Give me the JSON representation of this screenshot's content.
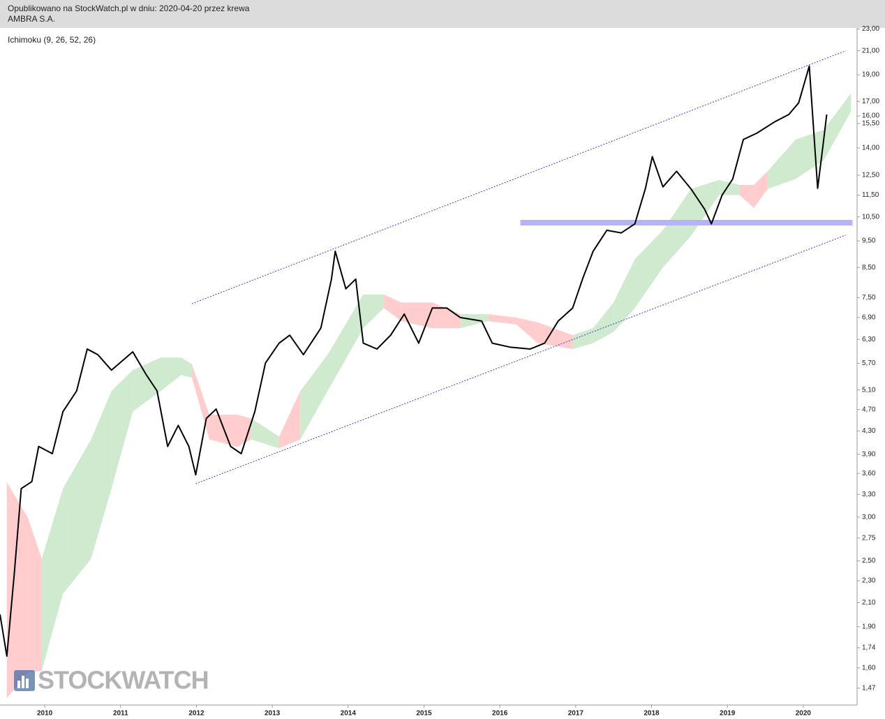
{
  "header": {
    "line1": "Opublikowano na StockWatch.pl w dniu: 2020-04-20 przez krewa",
    "line2": "AMBRA S.A."
  },
  "watermark": "STOCKWATCH",
  "chart_data": {
    "type": "line",
    "indicator_label": "Ichimoku (9, 26, 52, 26)",
    "log_scale": true,
    "color": "#000000",
    "xlim": [
      2009.41,
      2020.71
    ],
    "ylim": [
      1.37,
      23.1
    ],
    "xticks": [
      2010,
      2011,
      2012,
      2013,
      2014,
      2015,
      2016,
      2017,
      2018,
      2019,
      2020
    ],
    "yticks": [
      {
        "value": 23,
        "label": "23,00"
      },
      {
        "value": 21,
        "label": "21,00"
      },
      {
        "value": 19,
        "label": "19,00"
      },
      {
        "value": 17,
        "label": "17,00"
      },
      {
        "value": 16,
        "label": "16,00"
      },
      {
        "value": 15.5,
        "label": "15,50"
      },
      {
        "value": 14,
        "label": "14,00"
      },
      {
        "value": 12.5,
        "label": "12,50"
      },
      {
        "value": 11.5,
        "label": "11,50"
      },
      {
        "value": 10.5,
        "label": "10,50"
      },
      {
        "value": 9.5,
        "label": "9,50"
      },
      {
        "value": 8.5,
        "label": "8,50"
      },
      {
        "value": 7.5,
        "label": "7,50"
      },
      {
        "value": 6.9,
        "label": "6,90"
      },
      {
        "value": 6.3,
        "label": "6,30"
      },
      {
        "value": 5.7,
        "label": "5,70"
      },
      {
        "value": 5.1,
        "label": "5,10"
      },
      {
        "value": 4.7,
        "label": "4,70"
      },
      {
        "value": 4.3,
        "label": "4,30"
      },
      {
        "value": 3.9,
        "label": "3,90"
      },
      {
        "value": 3.6,
        "label": "3,60"
      },
      {
        "value": 3.3,
        "label": "3,30"
      },
      {
        "value": 3,
        "label": "3,00"
      },
      {
        "value": 2.75,
        "label": "2,75"
      },
      {
        "value": 2.5,
        "label": "2,50"
      },
      {
        "value": 2.3,
        "label": "2,30"
      },
      {
        "value": 2.1,
        "label": "2,10"
      },
      {
        "value": 1.9,
        "label": "1,90"
      },
      {
        "value": 1.74,
        "label": "1,74"
      },
      {
        "value": 1.6,
        "label": "1,60"
      },
      {
        "value": 1.47,
        "label": "1,47"
      }
    ],
    "x": [
      2009.41,
      2009.5,
      2009.6,
      2009.69,
      2009.83,
      2009.92,
      2010.1,
      2010.24,
      2010.42,
      2010.56,
      2010.7,
      2010.88,
      2011.16,
      2011.34,
      2011.48,
      2011.62,
      2011.76,
      2011.9,
      2011.99,
      2012.13,
      2012.26,
      2012.45,
      2012.59,
      2012.77,
      2012.91,
      2013.09,
      2013.23,
      2013.41,
      2013.64,
      2013.78,
      2013.83,
      2013.97,
      2014.1,
      2014.2,
      2014.38,
      2014.56,
      2014.74,
      2014.93,
      2015.11,
      2015.3,
      2015.48,
      2015.76,
      2015.9,
      2016.13,
      2016.4,
      2016.59,
      2016.77,
      2016.96,
      2017.09,
      2017.23,
      2017.41,
      2017.6,
      2017.78,
      2017.92,
      2018.01,
      2018.15,
      2018.33,
      2018.52,
      2018.7,
      2018.79,
      2018.93,
      2019.07,
      2019.21,
      2019.39,
      2019.62,
      2019.81,
      2019.94,
      2020.08,
      2020.19,
      2020.27,
      2020.31
    ],
    "values": [
      2.0,
      1.68,
      2.38,
      3.38,
      3.48,
      4.03,
      3.91,
      4.66,
      5.08,
      6.05,
      5.91,
      5.54,
      5.98,
      5.43,
      5.08,
      4.03,
      4.4,
      4.03,
      3.58,
      4.53,
      4.71,
      4.03,
      3.91,
      4.66,
      5.71,
      6.2,
      6.41,
      5.91,
      6.6,
      8.1,
      9.1,
      7.78,
      8.1,
      6.2,
      6.05,
      6.41,
      7.0,
      6.2,
      7.18,
      7.18,
      6.9,
      6.8,
      6.2,
      6.1,
      6.05,
      6.2,
      6.8,
      7.18,
      8.1,
      9.1,
      9.93,
      9.82,
      10.2,
      11.83,
      13.5,
      11.9,
      12.7,
      11.8,
      10.84,
      10.2,
      11.5,
      12.3,
      14.5,
      14.9,
      15.6,
      16.1,
      16.9,
      19.7,
      11.83,
      14.5,
      16.1
    ],
    "cloud": {
      "x": [
        2009.5,
        2009.78,
        2009.96,
        2010.24,
        2010.61,
        2010.88,
        2011.16,
        2011.53,
        2011.8,
        2011.94,
        2012.17,
        2012.54,
        2012.72,
        2013.09,
        2013.37,
        2013.73,
        2014.2,
        2014.47,
        2014.7,
        2015.11,
        2015.48,
        2015.85,
        2016.22,
        2016.5,
        2016.96,
        2017.23,
        2017.5,
        2017.78,
        2018.15,
        2018.52,
        2018.89,
        2019.16,
        2019.35,
        2019.53,
        2019.9,
        2020.27,
        2020.63
      ],
      "upper": [
        3.47,
        2.99,
        2.52,
        3.38,
        4.15,
        5.08,
        5.54,
        5.84,
        5.84,
        5.68,
        4.6,
        4.6,
        4.53,
        4.2,
        5.08,
        5.91,
        7.6,
        7.6,
        7.35,
        7.35,
        7.0,
        7.0,
        6.9,
        6.76,
        6.41,
        6.6,
        7.35,
        8.8,
        9.93,
        11.8,
        12.25,
        12.0,
        12.0,
        12.7,
        14.5,
        15.1,
        17.6
      ],
      "lower": [
        1.41,
        1.57,
        1.58,
        2.18,
        2.52,
        3.38,
        4.66,
        5.08,
        5.43,
        5.37,
        4.15,
        4.02,
        4.15,
        4.0,
        4.15,
        5.08,
        6.6,
        7.18,
        6.8,
        6.6,
        6.6,
        6.8,
        6.7,
        6.2,
        6.05,
        6.2,
        6.5,
        7.18,
        8.5,
        9.7,
        11.5,
        11.5,
        10.9,
        11.8,
        12.3,
        13.3,
        16.3
      ],
      "colors": [
        "#ffbcbc",
        "#ffbcbc",
        "#bfe3bf",
        "#bfe3bf",
        "#bfe3bf",
        "#bfe3bf",
        "#bfe3bf",
        "#bfe3bf",
        "#bfe3bf",
        "#ffbcbc",
        "#ffbcbc",
        "#ffbcbc",
        "#bfe3bf",
        "#ffbcbc",
        "#bfe3bf",
        "#bfe3bf",
        "#bfe3bf",
        "#ffbcbc",
        "#ffbcbc",
        "#ffbcbc",
        "#bfe3bf",
        "#ffbcbc",
        "#ffbcbc",
        "#ffbcbc",
        "#bfe3bf",
        "#bfe3bf",
        "#bfe3bf",
        "#bfe3bf",
        "#bfe3bf",
        "#bfe3bf",
        "#bfe3bf",
        "#ffbcbc",
        "#ffbcbc",
        "#bfe3bf",
        "#bfe3bf",
        "#bfe3bf",
        "#bfe3bf"
      ]
    },
    "trendlines": [
      {
        "x": [
          2011.94,
          2020.56
        ],
        "y": [
          7.31,
          21.0
        ],
        "color": "#3b3bd6"
      },
      {
        "x": [
          2011.99,
          2020.56
        ],
        "y": [
          3.45,
          9.73
        ],
        "color": "#3b3bd6"
      }
    ],
    "support_band": {
      "x": [
        2016.27,
        2020.65
      ],
      "y": 10.25,
      "color": "#b3b3f5"
    }
  }
}
